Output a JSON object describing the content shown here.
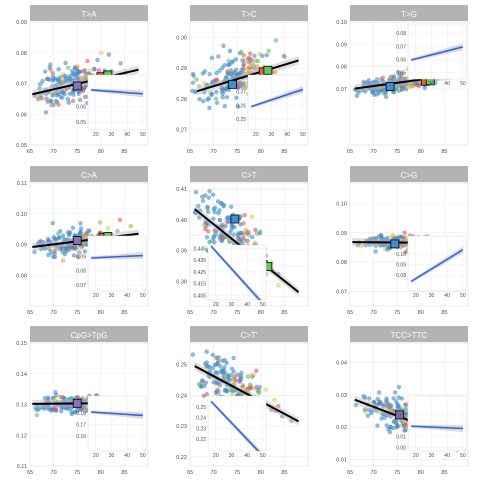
{
  "chart_data": [
    {
      "type": "scatter",
      "title": "T>A",
      "xlim": [
        65,
        90
      ],
      "ylim": [
        0.05,
        0.09
      ],
      "xticks": [
        65,
        70,
        75,
        80,
        85
      ],
      "yticks": [
        0.05,
        0.06,
        0.07,
        0.08,
        0.09
      ],
      "ytick_labels": [
        "0.05",
        "0.06",
        "0.07",
        "0.08",
        "0.09"
      ],
      "fit": {
        "x": [
          65.5,
          88
        ],
        "y": [
          0.0665,
          0.0745
        ]
      },
      "cluster": {
        "center": [
          73,
          0.0695
        ],
        "spread": [
          7,
          0.0042
        ],
        "n": 190
      },
      "means": [
        {
          "x": 75.0,
          "y": 0.0692,
          "color": "#8a70b8"
        },
        {
          "x": 80.0,
          "y": 0.0722,
          "color": "#e8612c"
        },
        {
          "x": 81.5,
          "y": 0.0728,
          "color": "#5fc85f"
        }
      ],
      "inset": {
        "xlim": [
          15,
          52
        ],
        "ylim": [
          0.045,
          0.08
        ],
        "xticks": [
          20,
          30,
          40,
          50
        ],
        "yticks": [
          0.05,
          0.06,
          0.07
        ],
        "ytick_labels": [
          "0.05",
          "0.06",
          "0.07"
        ],
        "line": {
          "x": [
            17,
            50
          ],
          "y": [
            0.0705,
            0.068
          ]
        }
      }
    },
    {
      "type": "scatter",
      "title": "T>C",
      "xlim": [
        65,
        90
      ],
      "ylim": [
        0.265,
        0.305
      ],
      "xticks": [
        65,
        70,
        75,
        80,
        85
      ],
      "yticks": [
        0.27,
        0.28,
        0.29,
        0.3
      ],
      "ytick_labels": [
        "0.27",
        "0.28",
        "0.29",
        "0.30"
      ],
      "fit": {
        "x": [
          66.5,
          88
        ],
        "y": [
          0.2825,
          0.2925
        ]
      },
      "cluster": {
        "center": [
          74,
          0.2865
        ],
        "spread": [
          7,
          0.0045
        ],
        "n": 190
      },
      "means": [
        {
          "x": 74.0,
          "y": 0.2847,
          "color": "#3a8fd0"
        },
        {
          "x": 80.5,
          "y": 0.2888,
          "color": "#e8612c"
        },
        {
          "x": 81.5,
          "y": 0.2893,
          "color": "#5fc85f"
        }
      ],
      "inset": {
        "xlim": [
          15,
          52
        ],
        "ylim": [
          0.242,
          0.282
        ],
        "xticks": [
          20,
          30,
          40,
          50
        ],
        "yticks": [
          0.25,
          0.26,
          0.27
        ],
        "ytick_labels": [
          "0.25",
          "0.26",
          "0.27"
        ],
        "line": {
          "x": [
            17,
            50
          ],
          "y": [
            0.259,
            0.2715
          ]
        }
      }
    },
    {
      "type": "scatter",
      "title": "T>G",
      "xlim": [
        65,
        90
      ],
      "ylim": [
        0.045,
        0.1
      ],
      "xticks": [
        65,
        70,
        75,
        80,
        85
      ],
      "yticks": [
        0.07,
        0.08,
        0.09,
        0.1
      ],
      "ytick_labels": [
        "0.07",
        "0.08",
        "0.09",
        "0.10"
      ],
      "fit": {
        "x": [
          66,
          88.5
        ],
        "y": [
          0.0702,
          0.0767
        ]
      },
      "cluster": {
        "center": [
          74,
          0.072
        ],
        "spread": [
          7,
          0.0028
        ],
        "n": 190
      },
      "means": [
        {
          "x": 73.5,
          "y": 0.0712,
          "color": "#3a8fd0"
        },
        {
          "x": 81.0,
          "y": 0.0735,
          "color": "#e8612c"
        },
        {
          "x": 82.0,
          "y": 0.0737,
          "color": "#5fc85f"
        }
      ],
      "inset": {
        "xlim": [
          15,
          52
        ],
        "ylim": [
          0.045,
          0.087
        ],
        "xticks": [
          20,
          30,
          40,
          50
        ],
        "yticks": [
          0.05,
          0.06,
          0.07,
          0.08
        ],
        "ytick_labels": [
          "0.05",
          "0.06",
          "0.07",
          "0.08"
        ],
        "line": {
          "x": [
            17,
            50
          ],
          "y": [
            0.0595,
            0.0695
          ]
        }
      }
    },
    {
      "type": "scatter",
      "title": "C>A",
      "xlim": [
        65,
        90
      ],
      "ylim": [
        0.07,
        0.11
      ],
      "xticks": [
        65,
        70,
        75,
        80,
        85
      ],
      "yticks": [
        0.08,
        0.09,
        0.1,
        0.11
      ],
      "ytick_labels": [
        "0.08",
        "0.09",
        "0.10",
        "0.11"
      ],
      "fit": {
        "x": [
          65.5,
          88
        ],
        "y": [
          0.0892,
          0.0935
        ]
      },
      "cluster": {
        "center": [
          74,
          0.0908
        ],
        "spread": [
          7,
          0.0028
        ],
        "n": 190
      },
      "means": [
        {
          "x": 75.0,
          "y": 0.0913,
          "color": "#8a70b8"
        },
        {
          "x": 80.5,
          "y": 0.0924,
          "color": "#e8612c"
        },
        {
          "x": 81.5,
          "y": 0.0926,
          "color": "#5fc85f"
        }
      ],
      "inset": {
        "xlim": [
          15,
          52
        ],
        "ylim": [
          0.066,
          0.104
        ],
        "xticks": [
          20,
          30,
          40,
          50
        ],
        "yticks": [
          0.07,
          0.08,
          0.09
        ],
        "ytick_labels": [
          "0.07",
          "0.08",
          "0.09"
        ],
        "line": {
          "x": [
            17,
            50
          ],
          "y": [
            0.0888,
            0.0905
          ]
        }
      }
    },
    {
      "type": "scatter",
      "title": "C>T",
      "xlim": [
        65,
        90
      ],
      "ylim": [
        0.372,
        0.412
      ],
      "xticks": [
        65,
        70,
        75,
        80,
        85
      ],
      "yticks": [
        0.375,
        0.38,
        0.385,
        0.39,
        0.395,
        0.4,
        0.405,
        0.41
      ],
      "ytick_labels": [
        "",
        "0.38",
        "",
        "0.39",
        "",
        "0.40",
        "",
        "0.41"
      ],
      "fit": {
        "x": [
          66,
          88
        ],
        "y": [
          0.4035,
          0.3765
        ]
      },
      "cluster": {
        "center": [
          74,
          0.394
        ],
        "spread": [
          7,
          0.0065
        ],
        "n": 190
      },
      "means": [
        {
          "x": 74.5,
          "y": 0.4003,
          "color": "#3a8fd0"
        },
        {
          "x": 80.5,
          "y": 0.3855,
          "color": "#e8612c"
        },
        {
          "x": 81.5,
          "y": 0.3848,
          "color": "#5fc85f"
        }
      ],
      "inset": {
        "xlim": [
          15,
          52
        ],
        "ylim": [
          0.401,
          0.448
        ],
        "xticks": [
          20,
          30,
          40,
          50
        ],
        "yticks": [
          0.405,
          0.415,
          0.425,
          0.435,
          0.445
        ],
        "ytick_labels": [
          "0.405",
          "0.415",
          "0.425",
          "0.435",
          "0.445"
        ],
        "line": {
          "x": [
            17,
            50
          ],
          "y": [
            0.447,
            0.398
          ]
        }
      }
    },
    {
      "type": "scatter",
      "title": "C>G",
      "xlim": [
        65,
        90
      ],
      "ylim": [
        0.065,
        0.107
      ],
      "xticks": [
        65,
        70,
        75,
        80,
        85
      ],
      "yticks": [
        0.07,
        0.08,
        0.09,
        0.1
      ],
      "ytick_labels": [
        "0.07",
        "0.08",
        "0.09",
        "0.10"
      ],
      "fit": {
        "x": [
          65.5,
          88.5
        ],
        "y": [
          0.0868,
          0.0865
        ]
      },
      "cluster": {
        "center": [
          75,
          0.0867
        ],
        "spread": [
          7,
          0.0018
        ],
        "n": 190
      },
      "means": [
        {
          "x": 74.5,
          "y": 0.0862,
          "color": "#3a8fd0"
        },
        {
          "x": 80.5,
          "y": 0.0869,
          "color": "#e8612c"
        },
        {
          "x": 82.0,
          "y": 0.0867,
          "color": "#5fc85f"
        }
      ],
      "inset": {
        "xlim": [
          15,
          52
        ],
        "ylim": [
          0.065,
          0.117
        ],
        "xticks": [
          20,
          30,
          40,
          50
        ],
        "yticks": [
          0.08,
          0.09,
          0.1
        ],
        "ytick_labels": [
          "0.08",
          "0.09",
          "0.10"
        ],
        "line": {
          "x": [
            17,
            50
          ],
          "y": [
            0.074,
            0.104
          ]
        }
      }
    },
    {
      "type": "scatter",
      "title": "CpG>TpG",
      "xlim": [
        65,
        90
      ],
      "ylim": [
        0.11,
        0.15
      ],
      "xticks": [
        65,
        70,
        75,
        80,
        85
      ],
      "yticks": [
        0.11,
        0.12,
        0.13,
        0.14,
        0.15
      ],
      "ytick_labels": [
        "0.11",
        "0.12",
        "0.13",
        "0.14",
        "0.15"
      ],
      "fit": {
        "x": [
          65.5,
          88
        ],
        "y": [
          0.1302,
          0.1305
        ]
      },
      "cluster": {
        "center": [
          74,
          0.1302
        ],
        "spread": [
          7,
          0.002
        ],
        "n": 190
      },
      "means": [
        {
          "x": 75.0,
          "y": 0.1304,
          "color": "#8a70b8"
        },
        {
          "x": 80.5,
          "y": 0.1303,
          "color": "#e8612c"
        },
        {
          "x": 81.5,
          "y": 0.1306,
          "color": "#5fc85f"
        }
      ],
      "inset": {
        "xlim": [
          15,
          52
        ],
        "ylim": [
          0.147,
          0.195
        ],
        "xticks": [
          20,
          30,
          40,
          50
        ],
        "yticks": [
          0.16,
          0.17,
          0.18
        ],
        "ytick_labels": [
          "0.16",
          "0.17",
          "0.18"
        ],
        "line": {
          "x": [
            17,
            50
          ],
          "y": [
            0.181,
            0.178
          ]
        }
      }
    },
    {
      "type": "scatter",
      "title": "C>T'",
      "xlim": [
        65,
        90
      ],
      "ylim": [
        0.217,
        0.257
      ],
      "xticks": [
        65,
        70,
        75,
        80,
        85
      ],
      "yticks": [
        0.22,
        0.23,
        0.24,
        0.25
      ],
      "ytick_labels": [
        "0.22",
        "0.23",
        "0.24",
        "0.25"
      ],
      "fit": {
        "x": [
          66,
          88
        ],
        "y": [
          0.2495,
          0.2315
        ]
      },
      "cluster": {
        "center": [
          74,
          0.243
        ],
        "spread": [
          7,
          0.005
        ],
        "n": 190
      },
      "means": [],
      "inset": {
        "xlim": [
          15,
          52
        ],
        "ylim": [
          0.209,
          0.26
        ],
        "xticks": [
          20,
          30,
          40,
          50
        ],
        "yticks": [
          0.22,
          0.23,
          0.24,
          0.25
        ],
        "ytick_labels": [
          "0.22",
          "0.23",
          "0.24",
          "0.25"
        ],
        "line": {
          "x": [
            17,
            50
          ],
          "y": [
            0.255,
            0.2045
          ]
        }
      }
    },
    {
      "type": "scatter",
      "title": "TCC>TTC",
      "xlim": [
        65,
        90
      ],
      "ylim": [
        0.008,
        0.046
      ],
      "xticks": [
        65,
        70,
        75,
        80,
        85
      ],
      "yticks": [
        0.01,
        0.02,
        0.03,
        0.04
      ],
      "ytick_labels": [
        "0.01",
        "0.02",
        "0.03",
        "0.04"
      ],
      "fit": {
        "x": [
          66,
          88.5
        ],
        "y": [
          0.0285,
          0.016
        ]
      },
      "cluster": {
        "center": [
          76,
          0.023
        ],
        "spread": [
          7,
          0.0035
        ],
        "n": 190
      },
      "means": [
        {
          "x": 75.5,
          "y": 0.0238,
          "color": "#8a70b8"
        },
        {
          "x": 80.5,
          "y": 0.0201,
          "color": "#e8612c"
        },
        {
          "x": 81.5,
          "y": 0.0196,
          "color": "#5fc85f"
        }
      ],
      "inset": {
        "xlim": [
          15,
          52
        ],
        "ylim": [
          -0.003,
          0.047
        ],
        "xticks": [
          20,
          30,
          40,
          50
        ],
        "yticks": [
          0.0,
          0.01,
          0.02,
          0.03
        ],
        "ytick_labels": [
          "0.00",
          "0.01",
          "0.02",
          "0.03"
        ],
        "line": {
          "x": [
            17,
            50
          ],
          "y": [
            0.0195,
            0.0175
          ]
        }
      }
    }
  ],
  "palette": [
    "#3a8fd0",
    "#4a9fd8",
    "#e8612c",
    "#5fc85f",
    "#e8d23a",
    "#e84a8a",
    "#8a70b8",
    "#f29a3a"
  ],
  "colors": {
    "strip": "#b3b3b3",
    "strip_text": "#ffffff",
    "grid": "#ebebeb",
    "fit_line": "#000000",
    "inset_line": "#3366e0",
    "ci_band": "#bfbfbf",
    "tick_text": "#4d4d4d"
  }
}
